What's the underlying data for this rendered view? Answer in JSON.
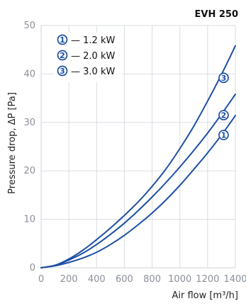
{
  "chart_data": {
    "type": "line",
    "title": "EVH 250",
    "xlabel": "Air flow [m³/h]",
    "ylabel": "Pressure drop, ΔP [Pa]",
    "xlim": [
      0,
      1400
    ],
    "ylim": [
      0,
      50
    ],
    "xticks": [
      0,
      200,
      400,
      600,
      800,
      1000,
      1200,
      1400
    ],
    "yticks": [
      0,
      10,
      20,
      30,
      40,
      50
    ],
    "grid": true,
    "legend_placement": "top-left",
    "colors": {
      "line": "#1d4fa3",
      "grid": "#d9dde2",
      "tick": "#8a8f98",
      "marker_fill": "#ffffff"
    },
    "series": [
      {
        "name": "1.2 kW",
        "legend_symbol": "1",
        "legend_text": "— 1.2 kW",
        "x": [
          0,
          100,
          200,
          300,
          400,
          500,
          600,
          700,
          800,
          900,
          1000,
          1100,
          1200,
          1300,
          1400
        ],
        "values": [
          0,
          0.4,
          1.1,
          2.0,
          3.2,
          4.8,
          6.7,
          8.9,
          11.3,
          14.0,
          17.0,
          20.3,
          23.7,
          27.4,
          31.4
        ]
      },
      {
        "name": "2.0 kW",
        "legend_symbol": "2",
        "legend_text": "— 2.0 kW",
        "x": [
          0,
          100,
          200,
          300,
          400,
          500,
          600,
          700,
          800,
          900,
          1000,
          1100,
          1200,
          1300,
          1400
        ],
        "values": [
          0,
          0.5,
          1.6,
          3.0,
          4.8,
          6.9,
          9.2,
          11.8,
          14.6,
          17.6,
          20.8,
          24.2,
          27.8,
          31.7,
          35.8
        ]
      },
      {
        "name": "3.0 kW",
        "legend_symbol": "3",
        "legend_text": "— 3.0 kW",
        "x": [
          0,
          100,
          200,
          300,
          400,
          500,
          600,
          700,
          800,
          900,
          1000,
          1100,
          1200,
          1300,
          1400
        ],
        "values": [
          0,
          0.5,
          1.8,
          3.6,
          5.8,
          8.2,
          10.8,
          13.6,
          16.8,
          20.4,
          24.6,
          29.2,
          34.4,
          39.9,
          45.8
        ]
      }
    ],
    "markers": [
      {
        "label": "1",
        "x": 1300,
        "y": 27.4
      },
      {
        "label": "2",
        "x": 1300,
        "y": 31.5
      },
      {
        "label": "3",
        "x": 1300,
        "y": 39.2
      }
    ]
  }
}
